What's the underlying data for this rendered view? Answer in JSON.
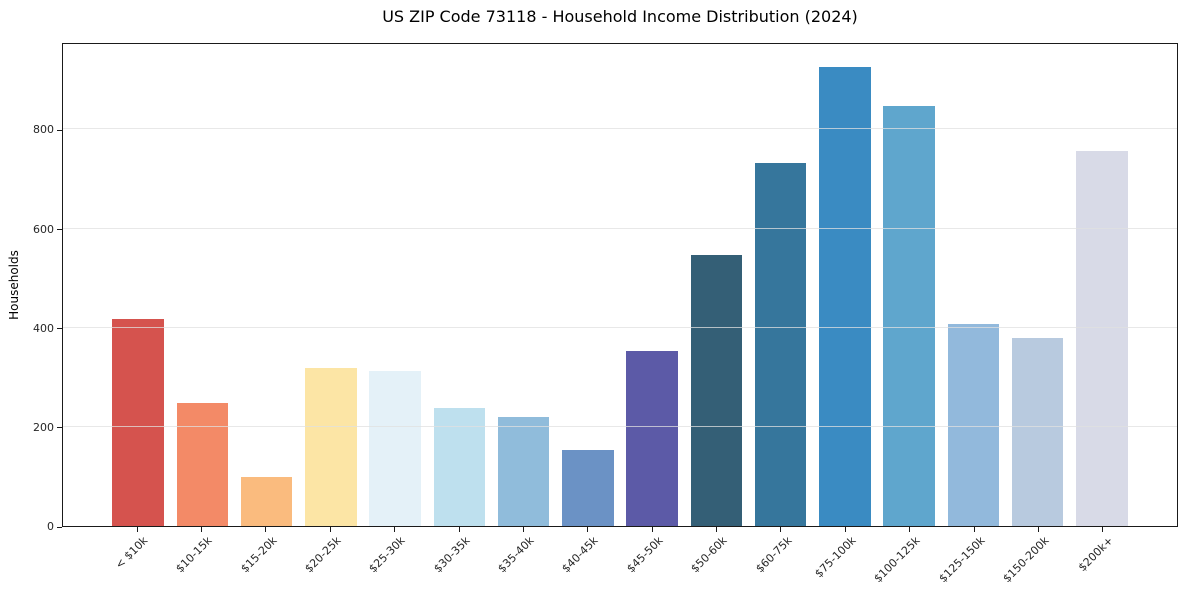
{
  "chart_data": {
    "type": "bar",
    "title": "US ZIP Code 73118 - Household Income Distribution (2024)",
    "xlabel": "",
    "ylabel": "Households",
    "categories": [
      "< $10k",
      "$10-15k",
      "$15-20k",
      "$20-25k",
      "$25-30k",
      "$30-35k",
      "$35-40k",
      "$40-45k",
      "$45-50k",
      "$50-60k",
      "$60-75k",
      "$75-100k",
      "$100-125k",
      "$125-150k",
      "$150-200k",
      "$200k+"
    ],
    "values": [
      420,
      250,
      100,
      320,
      315,
      240,
      220,
      155,
      355,
      550,
      735,
      930,
      850,
      410,
      380,
      760
    ],
    "bar_colors": [
      "#d5534e",
      "#f38a67",
      "#fabb7e",
      "#fce5a5",
      "#e4f1f8",
      "#bee0ee",
      "#90bcdb",
      "#6b92c5",
      "#5c5aa7",
      "#345f76",
      "#36769c",
      "#3a8bc2",
      "#5fa6cd",
      "#92b9dc",
      "#b8cadf",
      "#d8dae7"
    ],
    "ylim": [
      0,
      976.5
    ],
    "yticks": [
      0,
      200,
      400,
      600,
      800
    ],
    "grid": "horizontal-only, light gray, drawn over bars",
    "legend_position": "none",
    "xtick_rotation": 45,
    "spine_color": "#1a1a1a",
    "background_color": "#ffffff"
  }
}
